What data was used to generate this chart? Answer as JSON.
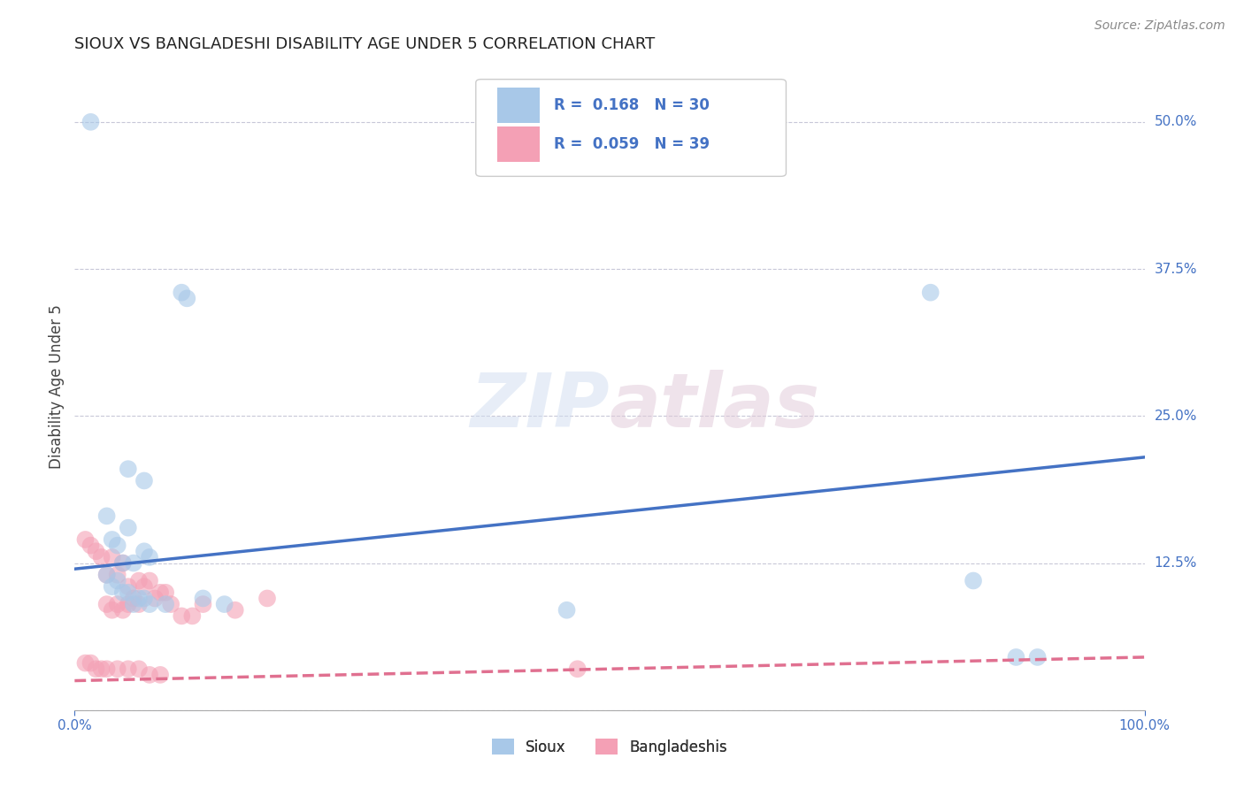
{
  "title": "SIOUX VS BANGLADESHI DISABILITY AGE UNDER 5 CORRELATION CHART",
  "source_text": "Source: ZipAtlas.com",
  "ylabel": "Disability Age Under 5",
  "xlabel": "",
  "xlim": [
    0.0,
    100.0
  ],
  "ylim": [
    0.0,
    55.0
  ],
  "yticks": [
    0.0,
    12.5,
    25.0,
    37.5,
    50.0
  ],
  "ytick_labels": [
    "",
    "12.5%",
    "25.0%",
    "37.5%",
    "50.0%"
  ],
  "sioux_color": "#a8c8e8",
  "bangladeshi_color": "#f4a0b5",
  "sioux_line_color": "#4472c4",
  "bangladeshi_line_color": "#e07090",
  "legend_text_color": "#4472c4",
  "background_color": "#ffffff",
  "watermark": "ZIPatlas",
  "sioux_R": 0.168,
  "sioux_N": 30,
  "bangladeshi_R": 0.059,
  "bangladeshi_N": 39,
  "sioux_line_x0": 0,
  "sioux_line_y0": 12.0,
  "sioux_line_x1": 100,
  "sioux_line_y1": 21.5,
  "bangla_line_x0": 0,
  "bangla_line_y0": 2.5,
  "bangla_line_x1": 100,
  "bangla_line_y1": 4.5,
  "sioux_points": [
    [
      1.5,
      50.0
    ],
    [
      5.0,
      20.5
    ],
    [
      6.5,
      19.5
    ],
    [
      3.0,
      16.5
    ],
    [
      5.0,
      15.5
    ],
    [
      3.5,
      14.5
    ],
    [
      4.0,
      14.0
    ],
    [
      6.5,
      13.5
    ],
    [
      7.0,
      13.0
    ],
    [
      4.5,
      12.5
    ],
    [
      5.5,
      12.5
    ],
    [
      3.0,
      11.5
    ],
    [
      4.0,
      11.0
    ],
    [
      3.5,
      10.5
    ],
    [
      5.0,
      10.0
    ],
    [
      4.5,
      10.0
    ],
    [
      6.0,
      9.5
    ],
    [
      6.5,
      9.5
    ],
    [
      5.5,
      9.0
    ],
    [
      7.0,
      9.0
    ],
    [
      8.5,
      9.0
    ],
    [
      12.0,
      9.5
    ],
    [
      14.0,
      9.0
    ],
    [
      10.0,
      35.5
    ],
    [
      10.5,
      35.0
    ],
    [
      46.0,
      8.5
    ],
    [
      80.0,
      35.5
    ],
    [
      84.0,
      11.0
    ],
    [
      88.0,
      4.5
    ],
    [
      90.0,
      4.5
    ]
  ],
  "bangladeshi_points": [
    [
      1.0,
      14.5
    ],
    [
      1.5,
      14.0
    ],
    [
      2.0,
      13.5
    ],
    [
      2.5,
      13.0
    ],
    [
      3.5,
      13.0
    ],
    [
      4.5,
      12.5
    ],
    [
      3.0,
      11.5
    ],
    [
      4.0,
      11.5
    ],
    [
      6.0,
      11.0
    ],
    [
      7.0,
      11.0
    ],
    [
      5.0,
      10.5
    ],
    [
      6.5,
      10.5
    ],
    [
      8.0,
      10.0
    ],
    [
      8.5,
      10.0
    ],
    [
      5.5,
      9.5
    ],
    [
      7.5,
      9.5
    ],
    [
      3.0,
      9.0
    ],
    [
      4.0,
      9.0
    ],
    [
      5.0,
      9.0
    ],
    [
      6.0,
      9.0
    ],
    [
      9.0,
      9.0
    ],
    [
      3.5,
      8.5
    ],
    [
      4.5,
      8.5
    ],
    [
      10.0,
      8.0
    ],
    [
      11.0,
      8.0
    ],
    [
      12.0,
      9.0
    ],
    [
      15.0,
      8.5
    ],
    [
      18.0,
      9.5
    ],
    [
      1.0,
      4.0
    ],
    [
      1.5,
      4.0
    ],
    [
      2.0,
      3.5
    ],
    [
      2.5,
      3.5
    ],
    [
      3.0,
      3.5
    ],
    [
      4.0,
      3.5
    ],
    [
      5.0,
      3.5
    ],
    [
      6.0,
      3.5
    ],
    [
      7.0,
      3.0
    ],
    [
      8.0,
      3.0
    ],
    [
      47.0,
      3.5
    ]
  ]
}
